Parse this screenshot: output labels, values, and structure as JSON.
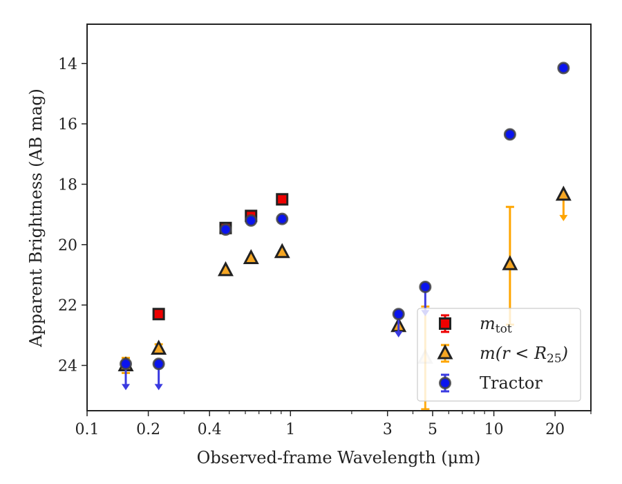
{
  "chart_data": {
    "type": "scatter",
    "title": "",
    "xlabel": "Observed-frame Wavelength (μm)",
    "ylabel": "Apparent Brightness (AB mag)",
    "xscale": "log",
    "xlim": [
      0.1,
      30
    ],
    "ylim": [
      25.5,
      12.7
    ],
    "y_inverted": true,
    "grid": false,
    "legend_position": "bottom-right",
    "x_ticks": [
      {
        "value": 0.1,
        "label": "0.1"
      },
      {
        "value": 0.2,
        "label": "0.2"
      },
      {
        "value": 0.4,
        "label": "0.4"
      },
      {
        "value": 1,
        "label": "1"
      },
      {
        "value": 3,
        "label": "3"
      },
      {
        "value": 5,
        "label": "5"
      },
      {
        "value": 10,
        "label": "10"
      },
      {
        "value": 20,
        "label": "20"
      }
    ],
    "y_ticks": [
      {
        "value": 14,
        "label": "14"
      },
      {
        "value": 16,
        "label": "16"
      },
      {
        "value": 18,
        "label": "18"
      },
      {
        "value": 20,
        "label": "20"
      },
      {
        "value": 22,
        "label": "22"
      },
      {
        "value": 24,
        "label": "24"
      }
    ],
    "series": [
      {
        "name": "m_tot",
        "legend_label": "m",
        "legend_sub": "tot",
        "marker": "square",
        "color": "#ee0000",
        "errorbar_color": "#ee0000",
        "points": [
          {
            "x": 0.225,
            "y": 22.3
          },
          {
            "x": 0.48,
            "y": 19.45
          },
          {
            "x": 0.64,
            "y": 19.05
          },
          {
            "x": 0.91,
            "y": 18.5
          }
        ]
      },
      {
        "name": "m(r<R25)",
        "legend_label": "m(r < R",
        "legend_sub": "25",
        "legend_suffix": ")",
        "marker": "triangle",
        "color": "#f5a623",
        "errorbar_color": "#ffa500",
        "points": [
          {
            "x": 0.155,
            "y": 24.0,
            "yerr": [
              0.25,
              0.25
            ]
          },
          {
            "x": 0.225,
            "y": 23.45,
            "yerr": [
              0.15,
              0.15
            ]
          },
          {
            "x": 0.48,
            "y": 20.85
          },
          {
            "x": 0.64,
            "y": 20.45
          },
          {
            "x": 0.91,
            "y": 20.25
          },
          {
            "x": 3.4,
            "y": 22.7,
            "upper_limit_to": 23.0
          },
          {
            "x": 4.6,
            "y": 23.75,
            "faded": true,
            "yerr": [
              1.7,
              1.7
            ]
          },
          {
            "x": 12.0,
            "y": 20.65,
            "yerr": [
              1.9,
              2.0
            ]
          },
          {
            "x": 22.0,
            "y": 18.35,
            "upper_limit_to": 19.2
          }
        ]
      },
      {
        "name": "Tractor",
        "legend_label": "Tractor",
        "marker": "circle",
        "color": "#0a14ee",
        "errorbar_color": "#3a3ae0",
        "points": [
          {
            "x": 0.155,
            "y": 23.95,
            "upper_limit_to": 24.8
          },
          {
            "x": 0.225,
            "y": 23.95,
            "upper_limit_to": 24.8
          },
          {
            "x": 0.48,
            "y": 19.5
          },
          {
            "x": 0.64,
            "y": 19.2
          },
          {
            "x": 0.91,
            "y": 19.15
          },
          {
            "x": 3.4,
            "y": 22.3,
            "upper_limit_to": 23.05
          },
          {
            "x": 4.6,
            "y": 21.4,
            "upper_limit_to": 22.35
          },
          {
            "x": 12.0,
            "y": 16.35
          },
          {
            "x": 22.0,
            "y": 14.15
          }
        ]
      }
    ]
  }
}
